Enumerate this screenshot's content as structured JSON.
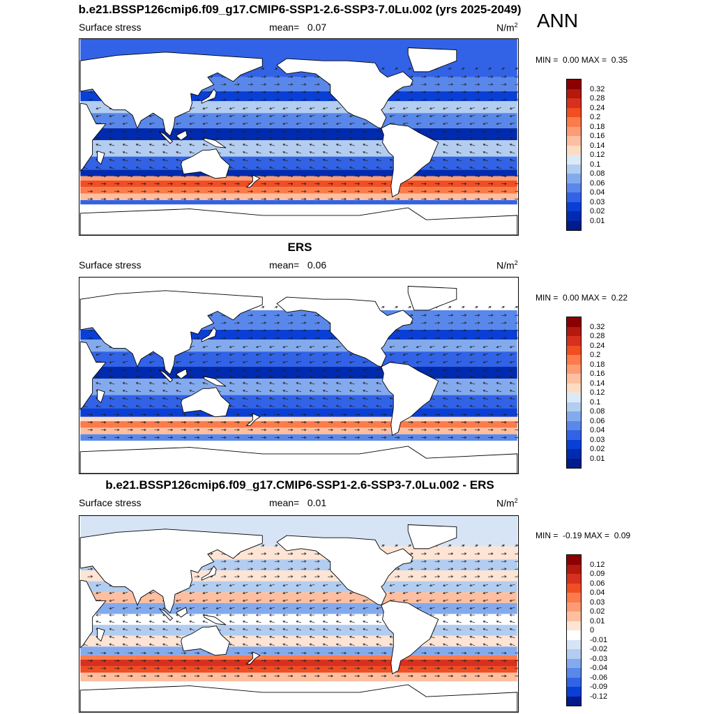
{
  "season": "ANN",
  "panels": [
    {
      "title": "b.e21.BSSP126cmip6.f09_g17.CMIP6-SSP1-2.6-SSP3-7.0Lu.002 (yrs 2025-2049)",
      "variable": "Surface stress",
      "mean_label": "mean=",
      "mean": "0.07",
      "units": "N/m",
      "units_exp": "2",
      "min_label": "MIN =",
      "min": "0.00",
      "max_label": "MAX =",
      "max": "0.35",
      "colorbar": {
        "colors": [
          "#8b0000",
          "#b3190d",
          "#d7301f",
          "#f04e23",
          "#fb7b4b",
          "#fc9c74",
          "#fdbfa0",
          "#fddcc4",
          "#dceaf7",
          "#b3cdf0",
          "#84aaee",
          "#5a88ea",
          "#3263e6",
          "#0a3fd6",
          "#002bb0",
          "#001b8a"
        ],
        "labels": [
          "0.32",
          "0.28",
          "0.24",
          "0.2",
          "0.18",
          "0.16",
          "0.14",
          "0.12",
          "0.1",
          "0.08",
          "0.06",
          "0.04",
          "0.03",
          "0.02",
          "0.01"
        ]
      }
    },
    {
      "title": "ERS",
      "variable": "Surface stress",
      "mean_label": "mean=",
      "mean": "0.06",
      "units": "N/m",
      "units_exp": "2",
      "min_label": "MIN =",
      "min": "0.00",
      "max_label": "MAX =",
      "max": "0.22",
      "colorbar": {
        "colors": [
          "#8b0000",
          "#b3190d",
          "#d7301f",
          "#f04e23",
          "#fb7b4b",
          "#fc9c74",
          "#fdbfa0",
          "#fddcc4",
          "#dceaf7",
          "#b3cdf0",
          "#84aaee",
          "#5a88ea",
          "#3263e6",
          "#0a3fd6",
          "#002bb0",
          "#001b8a"
        ],
        "labels": [
          "0.32",
          "0.28",
          "0.24",
          "0.2",
          "0.18",
          "0.16",
          "0.14",
          "0.12",
          "0.1",
          "0.08",
          "0.06",
          "0.04",
          "0.03",
          "0.02",
          "0.01"
        ]
      }
    },
    {
      "title": "b.e21.BSSP126cmip6.f09_g17.CMIP6-SSP1-2.6-SSP3-7.0Lu.002 - ERS",
      "variable": "Surface stress",
      "mean_label": "mean=",
      "mean": "0.01",
      "units": "N/m",
      "units_exp": "2",
      "min_label": "MIN =",
      "min": "-0.19",
      "max_label": "MAX =",
      "max": "0.09",
      "colorbar": {
        "colors": [
          "#8b0000",
          "#b3190d",
          "#d7301f",
          "#f04e23",
          "#fb7b4b",
          "#fc9c74",
          "#fdbfa0",
          "#fde4d4",
          "#ffffff",
          "#d6e4f5",
          "#b3cdf0",
          "#84aaee",
          "#5a88ea",
          "#3263e6",
          "#0a3fd6",
          "#001b8a"
        ],
        "labels": [
          "0.12",
          "0.09",
          "0.06",
          "0.04",
          "0.03",
          "0.02",
          "0.01",
          "0",
          "-0.01",
          "-0.02",
          "-0.03",
          "-0.04",
          "-0.06",
          "-0.09",
          "-0.12"
        ]
      }
    }
  ]
}
